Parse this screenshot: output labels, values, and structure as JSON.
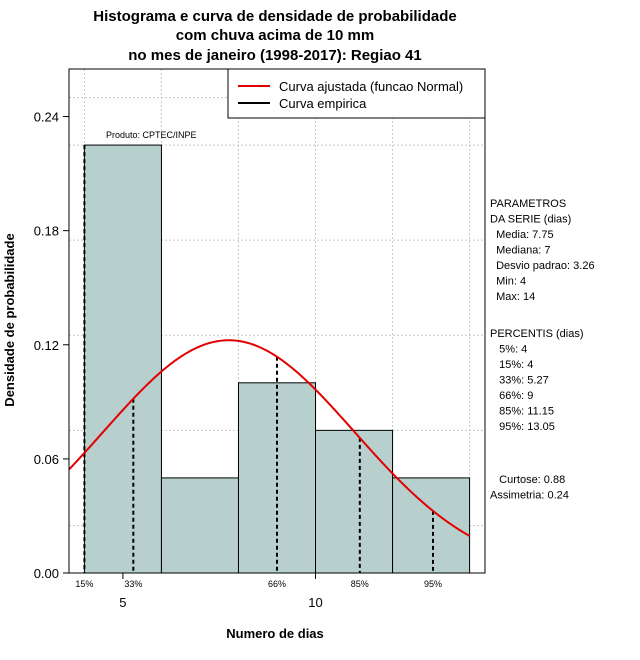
{
  "chart_data": {
    "type": "bar",
    "title_lines": [
      "Histograma e curva de densidade de probabilidade",
      "com chuva acima de 10 mm",
      "no mes de janeiro (1998-2017): Regiao 41"
    ],
    "xlabel": "Numero de dias",
    "ylabel": "Densidade de probabilidade",
    "xlim": [
      3.6,
      14.4
    ],
    "ylim": [
      0,
      0.265
    ],
    "x_ticks": [
      5,
      10
    ],
    "x_tick_labels": [
      "5",
      "10"
    ],
    "y_ticks": [
      0.0,
      0.06,
      0.12,
      0.18,
      0.24
    ],
    "y_tick_labels": [
      "0.00",
      "0.06",
      "0.12",
      "0.18",
      "0.24"
    ],
    "grid": true,
    "bins": [
      {
        "start": 4,
        "end": 6,
        "density": 0.225
      },
      {
        "start": 6,
        "end": 8,
        "density": 0.05
      },
      {
        "start": 8,
        "end": 10,
        "density": 0.1
      },
      {
        "start": 10,
        "end": 12,
        "density": 0.075
      },
      {
        "start": 12,
        "end": 14,
        "density": 0.05
      }
    ],
    "bar_color": "#b7cfcd",
    "normal_curve": {
      "mean": 7.75,
      "sd": 3.26,
      "color": "#e30000"
    },
    "percentile_lines": [
      {
        "label": "15%",
        "x": 4,
        "label_offset": 0
      },
      {
        "label": "33%",
        "x": 5.27,
        "label_offset": 0
      },
      {
        "label": "66%",
        "x": 9,
        "label_offset": 0
      },
      {
        "label": "85%",
        "x": 11.15,
        "label_offset": 0
      },
      {
        "label": "95%",
        "x": 13.05,
        "label_offset": 0
      }
    ],
    "legend": [
      {
        "label": "Curva ajustada (funcao Normal)",
        "color": "#e30000"
      },
      {
        "label": "Curva empirica",
        "color": "#000000"
      }
    ],
    "credit": "Produto: CPTEC/INPE"
  },
  "side_panel": {
    "parametros_lines": [
      "PARAMETROS",
      "DA SERIE (dias)",
      "  Media: 7.75",
      "  Mediana: 7",
      "  Desvio padrao: 3.26",
      "  Min: 4",
      "  Max: 14"
    ],
    "percentis_lines": [
      "PERCENTIS (dias)",
      "   5%: 4",
      "   15%: 4",
      "   33%: 5.27",
      "   66%: 9",
      "   85%: 11.15",
      "   95%: 13.05"
    ],
    "stats_lines": [
      "   Curtose: 0.88",
      "Assimetria: 0.24"
    ]
  }
}
